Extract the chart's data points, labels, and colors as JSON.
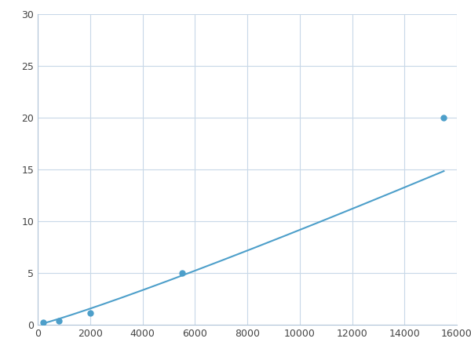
{
  "x_points": [
    200,
    800,
    2000,
    5500,
    15500
  ],
  "y_points": [
    0.2,
    0.35,
    1.1,
    5.0,
    20.0
  ],
  "line_color": "#4d9fca",
  "marker_color": "#4d9fca",
  "marker_size": 5,
  "line_width": 1.5,
  "xlim": [
    0,
    16000
  ],
  "ylim": [
    0,
    30
  ],
  "xticks": [
    0,
    2000,
    4000,
    6000,
    8000,
    10000,
    12000,
    14000,
    16000
  ],
  "yticks": [
    0,
    5,
    10,
    15,
    20,
    25,
    30
  ],
  "grid_color": "#c8d8e8",
  "background_color": "#ffffff",
  "figure_bg": "#ffffff"
}
